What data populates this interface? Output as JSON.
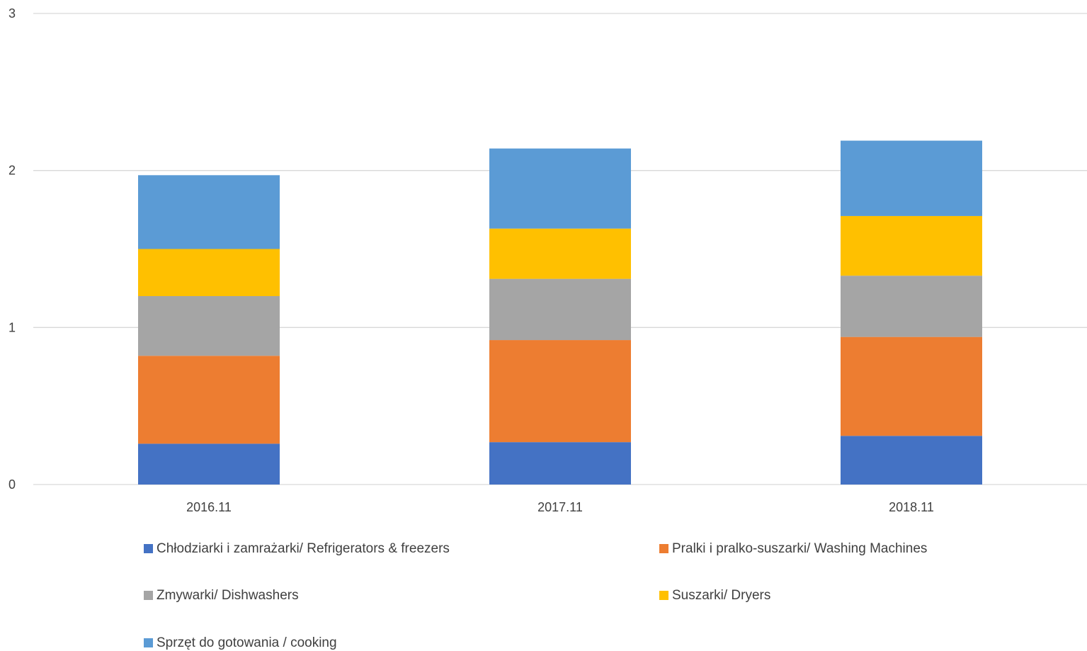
{
  "chart_data": {
    "type": "bar",
    "stacked": true,
    "categories": [
      "2016.11",
      "2017.11",
      "2018.11"
    ],
    "y_ticks": [
      "0",
      "1",
      "2",
      "3"
    ],
    "ylim": [
      0,
      3
    ],
    "grid": true,
    "legend_position": "bottom",
    "series": [
      {
        "name": "Chłodziarki i zamrażarki/ Refrigerators & freezers",
        "color": "#4472C4",
        "values": [
          0.26,
          0.27,
          0.31
        ]
      },
      {
        "name": "Pralki i pralko-suszarki/ Washing Machines",
        "color": "#ED7D31",
        "values": [
          0.56,
          0.65,
          0.63
        ]
      },
      {
        "name": "Zmywarki/ Dishwashers",
        "color": "#A5A5A5",
        "values": [
          0.38,
          0.39,
          0.39
        ]
      },
      {
        "name": "Suszarki/ Dryers",
        "color": "#FFC000",
        "values": [
          0.3,
          0.32,
          0.38
        ]
      },
      {
        "name": "Sprzęt do gotowania / cooking",
        "color": "#5B9BD5",
        "values": [
          0.47,
          0.51,
          0.48
        ]
      }
    ]
  }
}
